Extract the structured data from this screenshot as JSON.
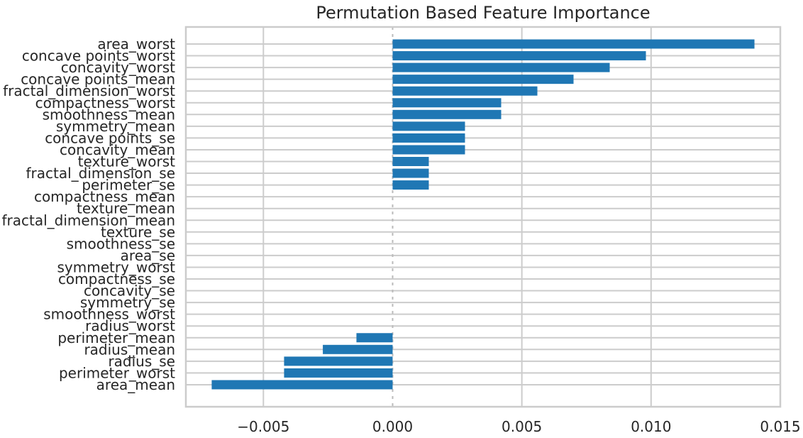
{
  "chart_data": {
    "type": "bar",
    "orientation": "horizontal",
    "title": "Permutation Based Feature Importance",
    "xlabel": "",
    "ylabel": "",
    "xlim": [
      -0.008,
      0.015
    ],
    "xticks": [
      -0.005,
      0.0,
      0.005,
      0.01,
      0.015
    ],
    "xtick_labels": [
      "−0.005",
      "0.000",
      "0.005",
      "0.010",
      "0.015"
    ],
    "grid": true,
    "bar_color": "#1f77b4",
    "categories": [
      "area_worst",
      "concave points_worst",
      "concavity_worst",
      "concave points_mean",
      "fractal_dimension_worst",
      "compactness_worst",
      "smoothness_mean",
      "symmetry_mean",
      "concave points_se",
      "concavity_mean",
      "texture_worst",
      "fractal_dimension_se",
      "perimeter_se",
      "compactness_mean",
      "texture_mean",
      "fractal_dimension_mean",
      "texture_se",
      "smoothness_se",
      "area_se",
      "symmetry_worst",
      "compactness_se",
      "concavity_se",
      "symmetry_se",
      "smoothness_worst",
      "radius_worst",
      "perimeter_mean",
      "radius_mean",
      "radius_se",
      "perimeter_worst",
      "area_mean"
    ],
    "values": [
      0.014,
      0.0098,
      0.0084,
      0.007,
      0.0056,
      0.0042,
      0.0042,
      0.0028,
      0.0028,
      0.0028,
      0.0014,
      0.0014,
      0.0014,
      0.0,
      0.0,
      0.0,
      0.0,
      0.0,
      0.0,
      0.0,
      0.0,
      0.0,
      0.0,
      0.0,
      0.0,
      -0.0014,
      -0.0027,
      -0.0042,
      -0.0042,
      -0.007
    ]
  }
}
